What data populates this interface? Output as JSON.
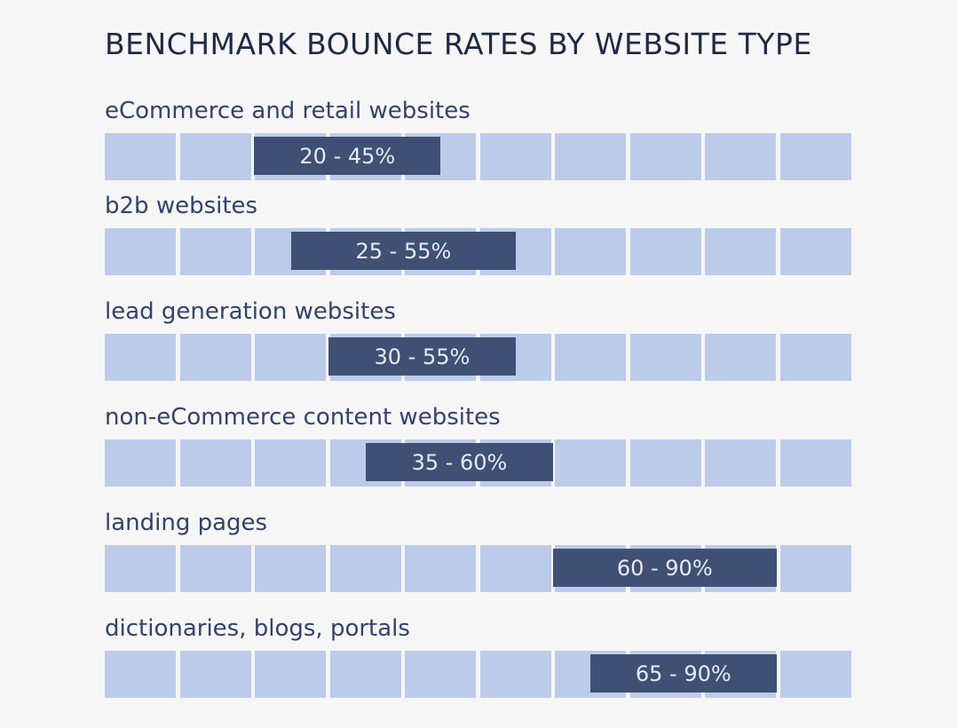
{
  "chart_data": {
    "type": "bar",
    "subtype": "range",
    "title": "BENCHMARK BOUNCE RATES BY WEBSITE TYPE",
    "xlim": [
      0,
      100
    ],
    "unit": "%",
    "segments": 10,
    "categories": [
      "eCommerce and retail websites",
      "b2b websites",
      "lead generation websites",
      "non-eCommerce content websites",
      "landing pages",
      "dictionaries, blogs, portals"
    ],
    "ranges": [
      [
        20,
        45
      ],
      [
        25,
        55
      ],
      [
        30,
        55
      ],
      [
        35,
        60
      ],
      [
        60,
        90
      ],
      [
        65,
        90
      ]
    ],
    "range_labels": [
      "20 - 45%",
      "25 - 55%",
      "30 - 55%",
      "35 - 60%",
      "60 - 90%",
      "65 - 90%"
    ],
    "colors": {
      "track": "#bccbea",
      "bar": "#3f5074",
      "label": "#33426a",
      "title": "#1f2a44"
    }
  }
}
